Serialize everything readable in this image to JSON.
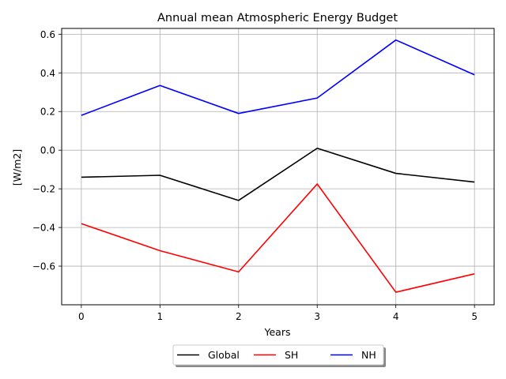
{
  "chart_data": {
    "type": "line",
    "title": "Annual mean Atmospheric Energy Budget",
    "xlabel": "Years",
    "ylabel": "[W/m2]",
    "x": [
      0,
      1,
      2,
      3,
      4,
      5
    ],
    "xticks": [
      "0",
      "1",
      "2",
      "3",
      "4",
      "5"
    ],
    "yticks": [
      -0.6,
      -0.4,
      -0.2,
      0.0,
      0.2,
      0.4,
      0.6
    ],
    "ytick_labels": [
      "−0.6",
      "−0.4",
      "−0.2",
      "0.0",
      "0.2",
      "0.4",
      "0.6"
    ],
    "xlim": [
      -0.25,
      5.25
    ],
    "ylim": [
      -0.8,
      0.63
    ],
    "grid": true,
    "legend_placement": "bottom-center",
    "series": [
      {
        "name": "Global",
        "color": "#000000",
        "values": [
          -0.14,
          -0.13,
          -0.26,
          0.01,
          -0.12,
          -0.165
        ]
      },
      {
        "name": "SH",
        "color": "#ff0000",
        "values": [
          -0.38,
          -0.52,
          -0.63,
          -0.175,
          -0.735,
          -0.64
        ]
      },
      {
        "name": "NH",
        "color": "#0000ff",
        "values": [
          0.18,
          0.335,
          0.19,
          0.27,
          0.57,
          0.39
        ]
      }
    ]
  }
}
